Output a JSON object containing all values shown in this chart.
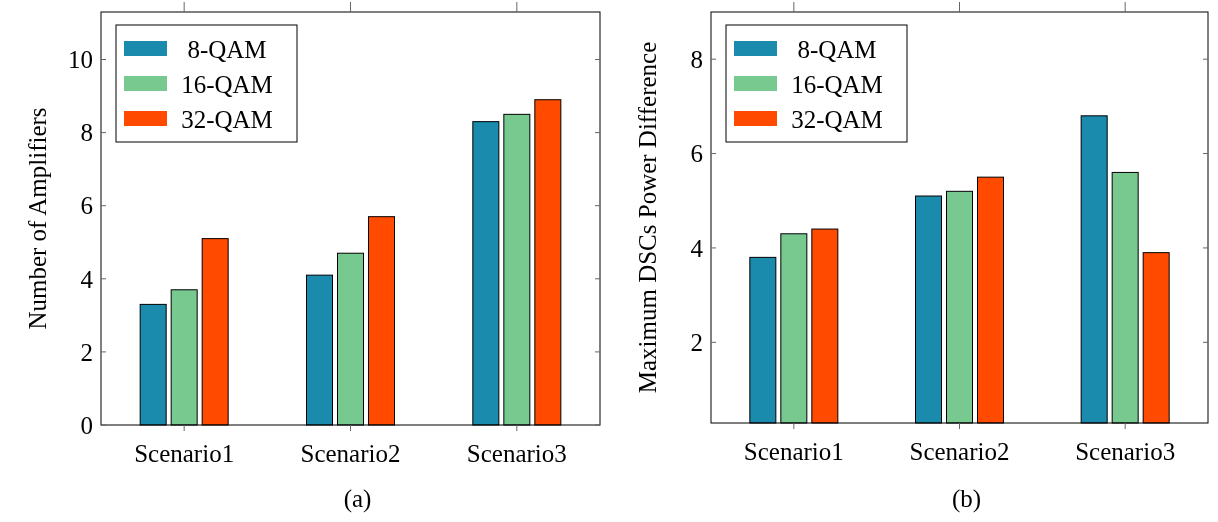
{
  "chart_data": [
    {
      "type": "bar",
      "ylabel": "Number of Amplifiers",
      "categories": [
        "Scenario1",
        "Scenario2",
        "Scenario3"
      ],
      "series": [
        {
          "name": "8-QAM",
          "color": "#1a8aad",
          "values": [
            3.3,
            4.1,
            8.3
          ]
        },
        {
          "name": "16-QAM",
          "color": "#77c990",
          "values": [
            3.7,
            4.7,
            8.5
          ]
        },
        {
          "name": "32-QAM",
          "color": "#ff4a00",
          "values": [
            5.1,
            5.7,
            8.9
          ]
        }
      ],
      "ylim": [
        0,
        11.3
      ],
      "yticks": [
        0,
        2,
        4,
        6,
        8,
        10
      ],
      "grid": false,
      "legend": "top left",
      "annotations": [
        "(a)"
      ]
    },
    {
      "type": "bar",
      "ylabel": "Maximum DSCs Power Difference",
      "categories": [
        "Scenario1",
        "Scenario2",
        "Scenario3"
      ],
      "series": [
        {
          "name": "8-QAM",
          "color": "#1a8aad",
          "values": [
            3.8,
            5.1,
            6.8
          ]
        },
        {
          "name": "16-QAM",
          "color": "#77c990",
          "values": [
            4.3,
            5.2,
            5.6
          ]
        },
        {
          "name": "32-QAM",
          "color": "#ff4a00",
          "values": [
            4.4,
            5.5,
            3.9
          ]
        }
      ],
      "ylim": [
        0.29,
        9
      ],
      "yticks": [
        2,
        4,
        6,
        8
      ],
      "grid": false,
      "legend": "top left",
      "annotations": [
        "(b)"
      ]
    }
  ]
}
